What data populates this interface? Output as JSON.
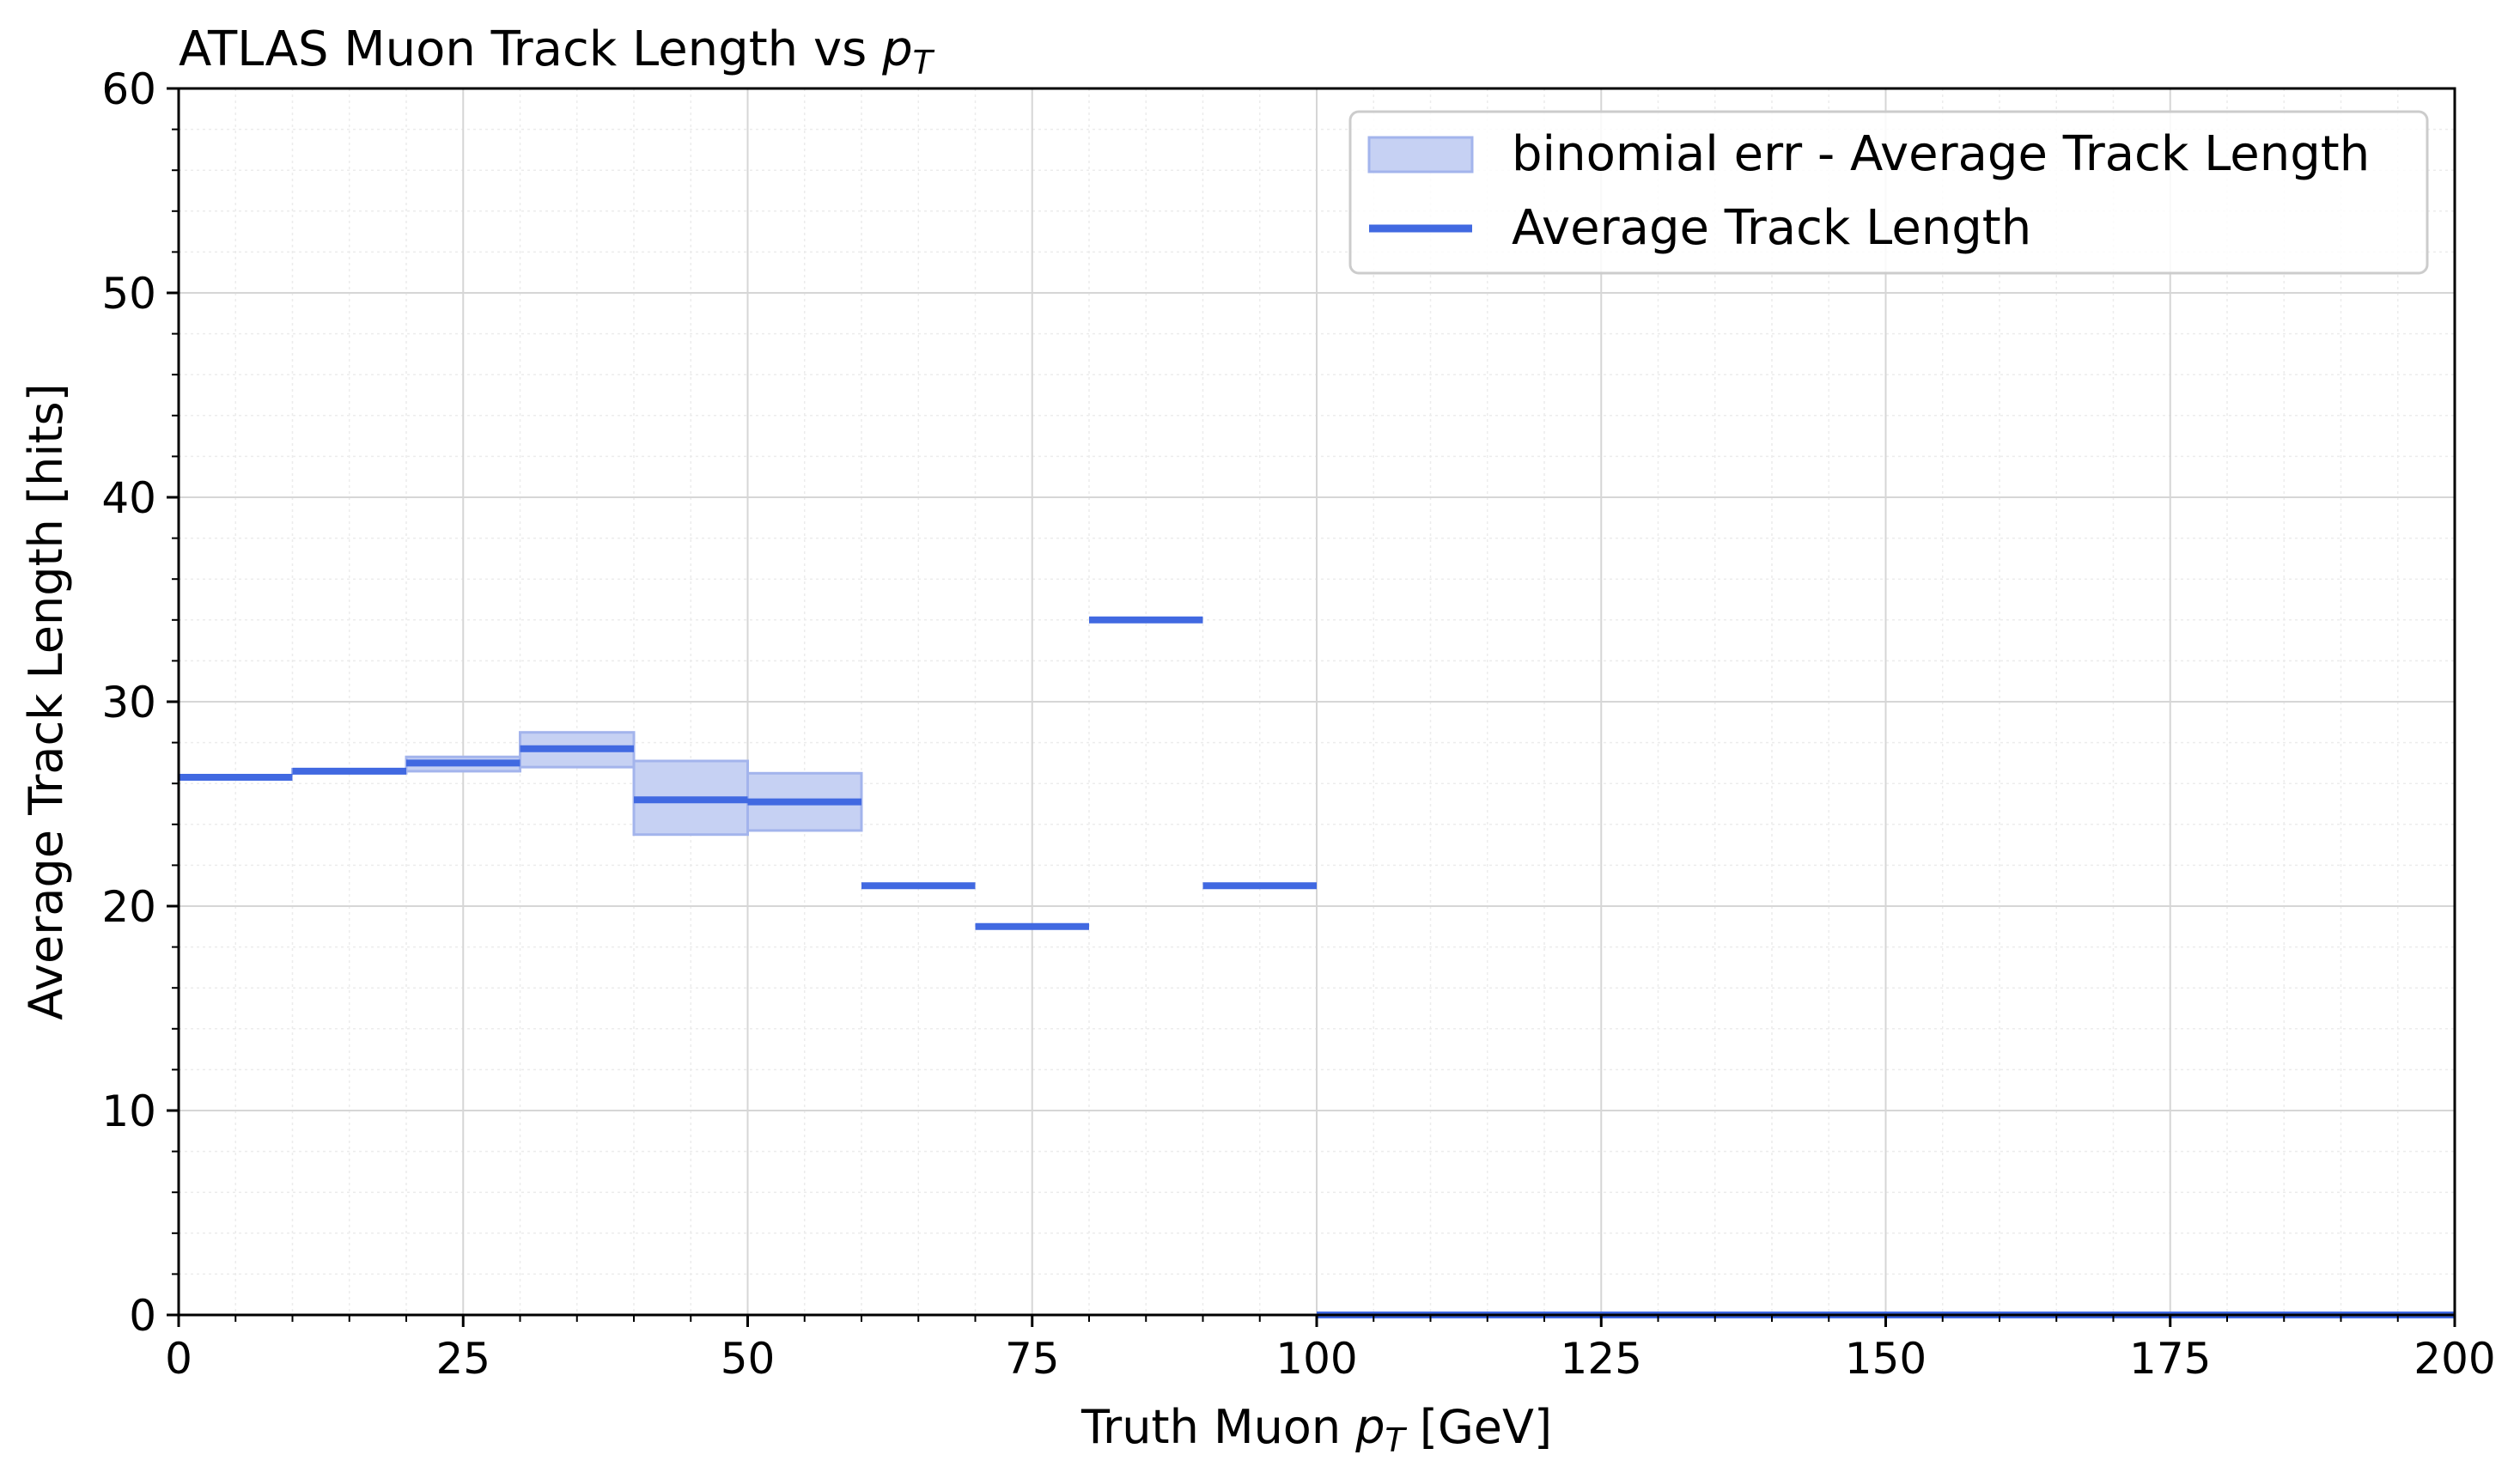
{
  "chart_data": {
    "type": "step",
    "title": "ATLAS Muon Track Length vs ",
    "title_math": "p",
    "title_math_sub": "T",
    "xlabel_prefix": "Truth Muon ",
    "xlabel_math": "p",
    "xlabel_math_sub": "T",
    "xlabel_suffix": " [GeV]",
    "ylabel": "Average Track Length [hits]",
    "xlim": [
      0,
      200
    ],
    "ylim": [
      0,
      60
    ],
    "xticks": [
      "0",
      "25",
      "50",
      "75",
      "100",
      "125",
      "150",
      "175",
      "200"
    ],
    "yticks": [
      "0",
      "10",
      "20",
      "30",
      "40",
      "50",
      "60"
    ],
    "xtick_values": [
      0,
      25,
      50,
      75,
      100,
      125,
      150,
      175,
      200
    ],
    "ytick_values": [
      0,
      10,
      20,
      30,
      40,
      50,
      60
    ],
    "grid": true,
    "minor_grid": true,
    "legend_position": "top-right",
    "legend": [
      "binomial err - Average Track Length",
      "Average Track Length"
    ],
    "series_color": "#4169e1",
    "band_fill_color": "#c6d1f3",
    "band_edge_color": "#a3b4ec",
    "bins": [
      {
        "x0": 0,
        "x1": 10,
        "value": 26.3,
        "err_low": 26.3,
        "err_high": 26.3
      },
      {
        "x0": 10,
        "x1": 20,
        "value": 26.6,
        "err_low": 26.5,
        "err_high": 26.7
      },
      {
        "x0": 20,
        "x1": 30,
        "value": 27.0,
        "err_low": 26.6,
        "err_high": 27.3
      },
      {
        "x0": 30,
        "x1": 40,
        "value": 27.7,
        "err_low": 26.8,
        "err_high": 28.5
      },
      {
        "x0": 40,
        "x1": 50,
        "value": 25.2,
        "err_low": 23.5,
        "err_high": 27.1
      },
      {
        "x0": 50,
        "x1": 60,
        "value": 25.1,
        "err_low": 23.7,
        "err_high": 26.5
      },
      {
        "x0": 60,
        "x1": 70,
        "value": 21.0,
        "err_low": 21.0,
        "err_high": 21.0
      },
      {
        "x0": 70,
        "x1": 80,
        "value": 19.0,
        "err_low": 19.0,
        "err_high": 19.0
      },
      {
        "x0": 80,
        "x1": 90,
        "value": 34.0,
        "err_low": 34.0,
        "err_high": 34.0
      },
      {
        "x0": 90,
        "x1": 100,
        "value": 21.0,
        "err_low": 21.0,
        "err_high": 21.0
      },
      {
        "x0": 100,
        "x1": 110,
        "value": 0,
        "err_low": 0,
        "err_high": 0
      },
      {
        "x0": 110,
        "x1": 120,
        "value": 0,
        "err_low": 0,
        "err_high": 0
      },
      {
        "x0": 120,
        "x1": 130,
        "value": 0,
        "err_low": 0,
        "err_high": 0
      },
      {
        "x0": 130,
        "x1": 140,
        "value": 0,
        "err_low": 0,
        "err_high": 0
      },
      {
        "x0": 140,
        "x1": 150,
        "value": 0,
        "err_low": 0,
        "err_high": 0
      },
      {
        "x0": 150,
        "x1": 160,
        "value": 0,
        "err_low": 0,
        "err_high": 0
      },
      {
        "x0": 160,
        "x1": 170,
        "value": 0,
        "err_low": 0,
        "err_high": 0
      },
      {
        "x0": 170,
        "x1": 180,
        "value": 0,
        "err_low": 0,
        "err_high": 0
      },
      {
        "x0": 180,
        "x1": 190,
        "value": 0,
        "err_low": 0,
        "err_high": 0
      },
      {
        "x0": 190,
        "x1": 200,
        "value": 0,
        "err_low": 0,
        "err_high": 0
      }
    ]
  }
}
